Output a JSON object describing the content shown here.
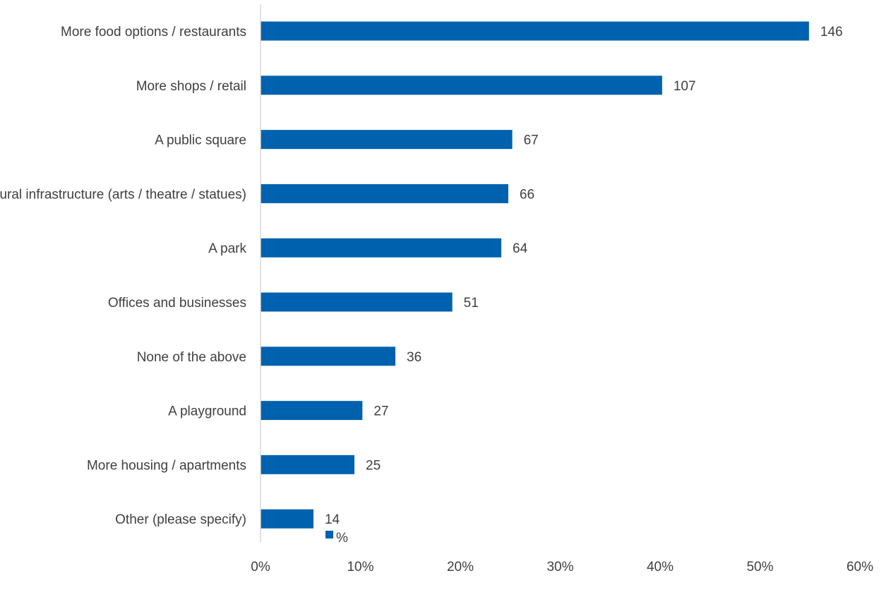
{
  "chart_data": {
    "type": "bar",
    "orientation": "horizontal",
    "categories": [
      "More food options / restaurants",
      "More shops / retail",
      "A public square",
      "Cultural infrastructure (arts / theatre / statues)",
      "A park",
      "Offices and businesses",
      "None of the above",
      "A playground",
      "More housing / apartments",
      "Other (please specify)"
    ],
    "series": [
      {
        "name": "%",
        "values": [
          54.9,
          40.2,
          25.2,
          24.8,
          24.1,
          19.2,
          13.5,
          10.2,
          9.4,
          5.3
        ],
        "data_labels": [
          "146",
          "107",
          "67",
          "66",
          "64",
          "51",
          "36",
          "27",
          "25",
          "14"
        ]
      }
    ],
    "xlim": [
      0,
      60
    ],
    "xticks": [
      "0%",
      "10%",
      "20%",
      "30%",
      "40%",
      "50%",
      "60%"
    ],
    "xtick_values": [
      0,
      10,
      20,
      30,
      40,
      50,
      60
    ],
    "grid": false,
    "legend_position": "bottom",
    "bar_color": "#0062AE",
    "axis_color": "#D9D9D9",
    "title": "",
    "xlabel": "",
    "ylabel": ""
  }
}
